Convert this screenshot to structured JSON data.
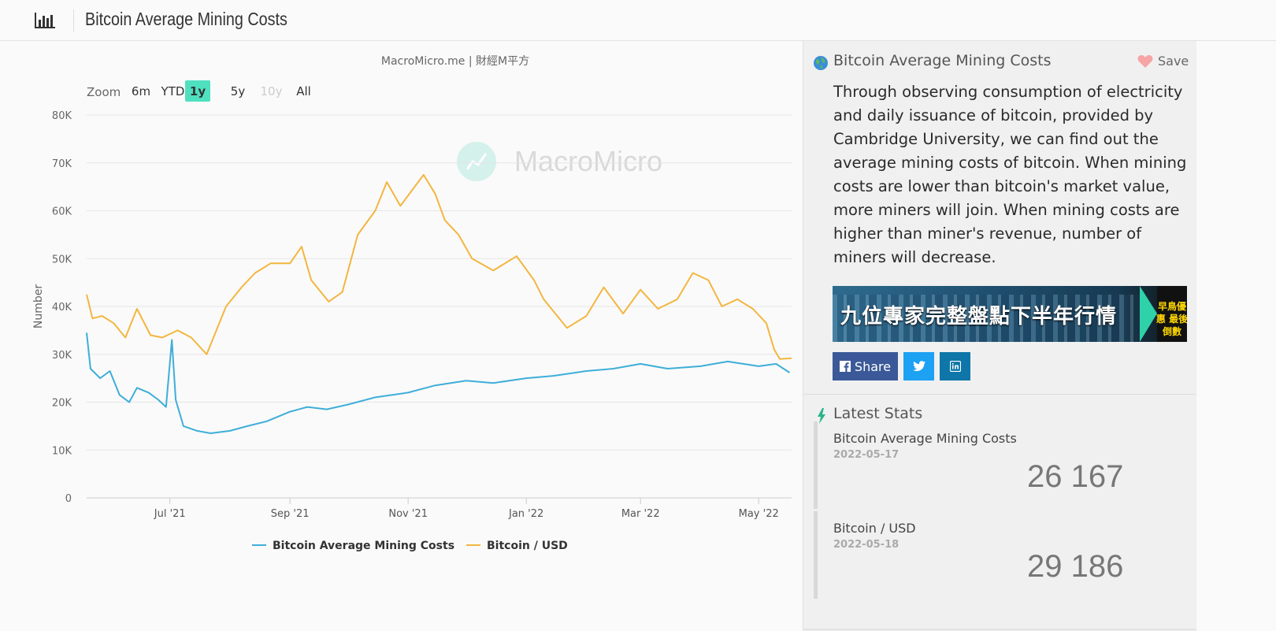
{
  "page": {
    "title": "Bitcoin Average Mining Costs"
  },
  "chart": {
    "credit": "MacroMicro.me | 財經M平方",
    "watermark": "MacroMicro",
    "zoom_label": "Zoom",
    "zoom_options": [
      "6m",
      "YTD",
      "1y",
      "5y",
      "10y",
      "All"
    ],
    "zoom_selected": "1y",
    "zoom_disabled": [
      "10y"
    ],
    "y_ticks": [
      "0",
      "10K",
      "20K",
      "30K",
      "40K",
      "50K",
      "60K",
      "70K",
      "80K"
    ],
    "x_ticks": [
      "Jul '21",
      "Sep '21",
      "Nov '21",
      "Jan '22",
      "Mar '22",
      "May '22"
    ],
    "ylabel": "Number",
    "colors": {
      "mining": "#3eaed8",
      "bitcoin": "#f3b63f",
      "active_zoom": "#4fe0c0"
    }
  },
  "chart_data": {
    "type": "line",
    "title": "",
    "xlabel": "",
    "ylabel": "Number",
    "ylim": [
      0,
      80000
    ],
    "x_range": [
      "2021-05-19",
      "2022-05-18"
    ],
    "grid": true,
    "legend_position": "bottom-center",
    "series": [
      {
        "name": "Bitcoin Average Mining Costs",
        "color": "#3eaed8",
        "points": [
          [
            "2021-05-19",
            34500
          ],
          [
            "2021-05-21",
            27000
          ],
          [
            "2021-05-26",
            25000
          ],
          [
            "2021-05-31",
            26500
          ],
          [
            "2021-06-05",
            21500
          ],
          [
            "2021-06-10",
            20000
          ],
          [
            "2021-06-14",
            23000
          ],
          [
            "2021-06-20",
            22000
          ],
          [
            "2021-06-25",
            20500
          ],
          [
            "2021-06-29",
            19000
          ],
          [
            "2021-07-02",
            33000
          ],
          [
            "2021-07-04",
            20500
          ],
          [
            "2021-07-08",
            15000
          ],
          [
            "2021-07-15",
            14000
          ],
          [
            "2021-07-22",
            13500
          ],
          [
            "2021-08-01",
            14000
          ],
          [
            "2021-08-10",
            15000
          ],
          [
            "2021-08-20",
            16000
          ],
          [
            "2021-09-01",
            18000
          ],
          [
            "2021-09-10",
            19000
          ],
          [
            "2021-09-20",
            18500
          ],
          [
            "2021-10-01",
            19500
          ],
          [
            "2021-10-15",
            21000
          ],
          [
            "2021-11-01",
            22000
          ],
          [
            "2021-11-15",
            23500
          ],
          [
            "2021-12-01",
            24500
          ],
          [
            "2021-12-15",
            24000
          ],
          [
            "2022-01-01",
            25000
          ],
          [
            "2022-01-15",
            25500
          ],
          [
            "2022-02-01",
            26500
          ],
          [
            "2022-02-15",
            27000
          ],
          [
            "2022-03-01",
            28000
          ],
          [
            "2022-03-15",
            27000
          ],
          [
            "2022-04-01",
            27500
          ],
          [
            "2022-04-15",
            28500
          ],
          [
            "2022-05-01",
            27500
          ],
          [
            "2022-05-10",
            28000
          ],
          [
            "2022-05-17",
            26167
          ]
        ]
      },
      {
        "name": "Bitcoin / USD",
        "color": "#f3b63f",
        "points": [
          [
            "2021-05-19",
            42500
          ],
          [
            "2021-05-22",
            37500
          ],
          [
            "2021-05-27",
            38000
          ],
          [
            "2021-06-02",
            36500
          ],
          [
            "2021-06-08",
            33500
          ],
          [
            "2021-06-14",
            39500
          ],
          [
            "2021-06-21",
            34000
          ],
          [
            "2021-06-27",
            33500
          ],
          [
            "2021-07-05",
            35000
          ],
          [
            "2021-07-12",
            33500
          ],
          [
            "2021-07-20",
            30000
          ],
          [
            "2021-07-25",
            35000
          ],
          [
            "2021-07-30",
            40000
          ],
          [
            "2021-08-07",
            44000
          ],
          [
            "2021-08-14",
            47000
          ],
          [
            "2021-08-22",
            49000
          ],
          [
            "2021-09-01",
            49000
          ],
          [
            "2021-09-07",
            52500
          ],
          [
            "2021-09-12",
            45500
          ],
          [
            "2021-09-21",
            41000
          ],
          [
            "2021-09-28",
            43000
          ],
          [
            "2021-10-06",
            55000
          ],
          [
            "2021-10-15",
            60000
          ],
          [
            "2021-10-21",
            66000
          ],
          [
            "2021-10-28",
            61000
          ],
          [
            "2021-11-09",
            67500
          ],
          [
            "2021-11-15",
            63500
          ],
          [
            "2021-11-20",
            58000
          ],
          [
            "2021-11-27",
            55000
          ],
          [
            "2021-12-04",
            50000
          ],
          [
            "2021-12-15",
            47500
          ],
          [
            "2021-12-27",
            50500
          ],
          [
            "2022-01-05",
            45500
          ],
          [
            "2022-01-10",
            41500
          ],
          [
            "2022-01-22",
            35500
          ],
          [
            "2022-02-01",
            38000
          ],
          [
            "2022-02-10",
            44000
          ],
          [
            "2022-02-20",
            38500
          ],
          [
            "2022-03-01",
            43500
          ],
          [
            "2022-03-10",
            39500
          ],
          [
            "2022-03-20",
            41500
          ],
          [
            "2022-03-28",
            47000
          ],
          [
            "2022-04-05",
            45500
          ],
          [
            "2022-04-12",
            40000
          ],
          [
            "2022-04-20",
            41500
          ],
          [
            "2022-04-28",
            39500
          ],
          [
            "2022-05-05",
            36500
          ],
          [
            "2022-05-09",
            31000
          ],
          [
            "2022-05-12",
            29000
          ],
          [
            "2022-05-18",
            29186
          ]
        ]
      }
    ]
  },
  "sidepanel": {
    "title": "Bitcoin Average Mining Costs",
    "save_label": "Save",
    "description": "Through observing consumption of electricity and daily issuance of bitcoin, provided by Cambridge University, we can find out the average mining costs of bitcoin. When mining costs are lower than bitcoin's market value, more miners will join. When mining costs are higher than miner's revenue, number of miners will decrease.",
    "banner": {
      "headline": "九位專家完整盤點下半年行情",
      "badge": "早鳥優惠 最後倒數"
    },
    "share": {
      "facebook_label": "Share"
    },
    "latest_stats_title": "Latest Stats",
    "stats": [
      {
        "name": "Bitcoin Average Mining Costs",
        "date": "2022-05-17",
        "value": "26 167"
      },
      {
        "name": "Bitcoin / USD",
        "date": "2022-05-18",
        "value": "29 186"
      }
    ]
  }
}
